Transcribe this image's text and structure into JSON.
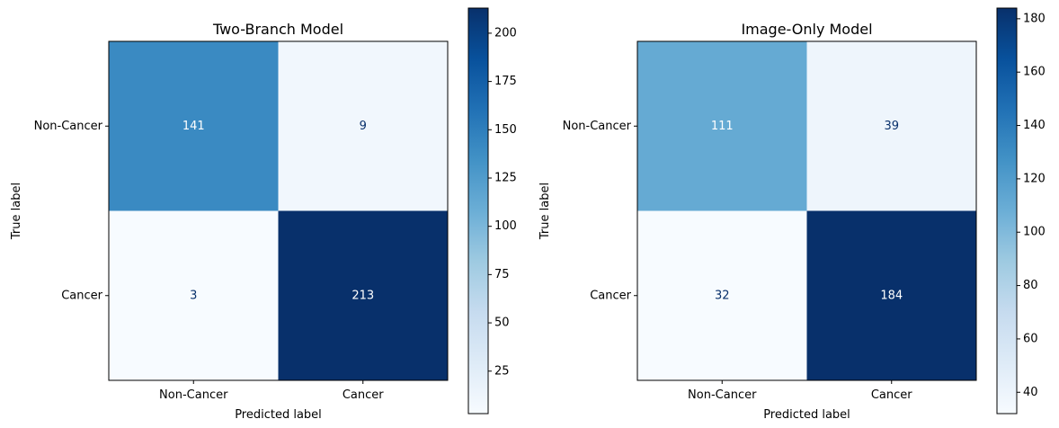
{
  "chart_data": [
    {
      "type": "heatmap",
      "title": "Two-Branch Model",
      "xlabel": "Predicted label",
      "ylabel": "True label",
      "x_categories": [
        "Non-Cancer",
        "Cancer"
      ],
      "y_categories": [
        "Non-Cancer",
        "Cancer"
      ],
      "values": [
        [
          141,
          9
        ],
        [
          3,
          213
        ]
      ],
      "colormap": "Blues",
      "colorbar": {
        "range": [
          3,
          213
        ],
        "ticks": [
          25,
          50,
          75,
          100,
          125,
          150,
          175,
          200
        ]
      }
    },
    {
      "type": "heatmap",
      "title": "Image-Only Model",
      "xlabel": "Predicted label",
      "ylabel": "True label",
      "x_categories": [
        "Non-Cancer",
        "Cancer"
      ],
      "y_categories": [
        "Non-Cancer",
        "Cancer"
      ],
      "values": [
        [
          111,
          39
        ],
        [
          32,
          184
        ]
      ],
      "colormap": "Blues",
      "colorbar": {
        "range": [
          32,
          184
        ],
        "ticks": [
          40,
          60,
          80,
          100,
          120,
          140,
          160,
          180
        ]
      }
    }
  ],
  "colors": {
    "light_text": "#ffffff",
    "dark_text": "#08306b",
    "axis": "#000000"
  }
}
